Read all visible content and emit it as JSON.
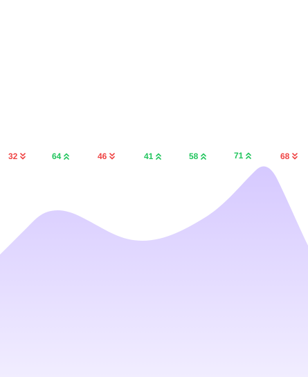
{
  "metrics": [
    {
      "value": "32",
      "trend": "down",
      "icon": "chevron-double-down-icon"
    },
    {
      "value": "64",
      "trend": "up",
      "icon": "chevron-double-up-icon"
    },
    {
      "value": "46",
      "trend": "down",
      "icon": "chevron-double-down-icon"
    },
    {
      "value": "41",
      "trend": "up",
      "icon": "chevron-double-up-icon"
    },
    {
      "value": "58",
      "trend": "up",
      "icon": "chevron-double-up-icon"
    },
    {
      "value": "71",
      "trend": "up",
      "icon": "chevron-double-up-icon"
    },
    {
      "value": "68",
      "trend": "down",
      "icon": "chevron-double-down-icon"
    }
  ],
  "colors": {
    "up": "#22c55e",
    "down": "#ef4444",
    "area_top": "#d8ccff",
    "area_bottom": "#f1edff"
  }
}
